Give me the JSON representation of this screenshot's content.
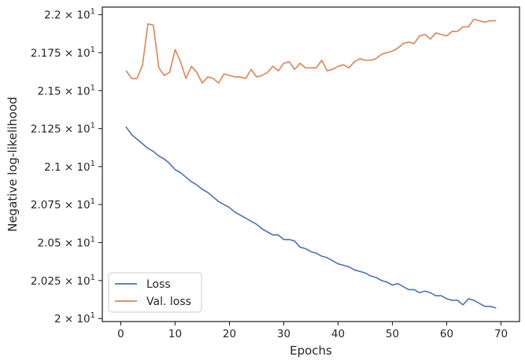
{
  "chart_data": {
    "type": "line",
    "xlabel": "Epochs",
    "ylabel": "Negative log-likelihood",
    "xlim": [
      -3.4,
      73.4
    ],
    "ylim": [
      19.98,
      22.05
    ],
    "x_ticks": [
      0,
      10,
      20,
      30,
      40,
      50,
      60,
      70
    ],
    "x_tick_labels": [
      "0",
      "10",
      "20",
      "30",
      "40",
      "50",
      "60",
      "70"
    ],
    "y_ticks": [
      20.0,
      20.25,
      20.5,
      20.75,
      21.0,
      21.25,
      21.5,
      21.75,
      22.0
    ],
    "y_tick_labels": [
      {
        "mantissa": "2",
        "exp": "1"
      },
      {
        "mantissa": "2.025",
        "exp": "1"
      },
      {
        "mantissa": "2.05",
        "exp": "1"
      },
      {
        "mantissa": "2.075",
        "exp": "1"
      },
      {
        "mantissa": "2.1",
        "exp": "1"
      },
      {
        "mantissa": "2.125",
        "exp": "1"
      },
      {
        "mantissa": "2.15",
        "exp": "1"
      },
      {
        "mantissa": "2.175",
        "exp": "1"
      },
      {
        "mantissa": "2.2",
        "exp": "1"
      }
    ],
    "times_sign": "× 10",
    "legend_position": "lower-left",
    "grid": false,
    "series": [
      {
        "name": "Loss",
        "color": "#4c72b0",
        "x": [
          1,
          2,
          3,
          4,
          5,
          6,
          7,
          8,
          9,
          10,
          11,
          12,
          13,
          14,
          15,
          16,
          17,
          18,
          19,
          20,
          21,
          22,
          23,
          24,
          25,
          26,
          27,
          28,
          29,
          30,
          31,
          32,
          33,
          34,
          35,
          36,
          37,
          38,
          39,
          40,
          41,
          42,
          43,
          44,
          45,
          46,
          47,
          48,
          49,
          50,
          51,
          52,
          53,
          54,
          55,
          56,
          57,
          58,
          59,
          60,
          61,
          62,
          63,
          64,
          65,
          66,
          67,
          68,
          69
        ],
        "values": [
          21.26,
          21.21,
          21.18,
          21.15,
          21.12,
          21.1,
          21.07,
          21.05,
          21.02,
          20.98,
          20.96,
          20.93,
          20.9,
          20.88,
          20.85,
          20.83,
          20.8,
          20.77,
          20.75,
          20.73,
          20.7,
          20.68,
          20.66,
          20.64,
          20.62,
          20.59,
          20.57,
          20.55,
          20.55,
          20.52,
          20.52,
          20.51,
          20.47,
          20.46,
          20.44,
          20.43,
          20.41,
          20.4,
          20.38,
          20.36,
          20.35,
          20.34,
          20.32,
          20.31,
          20.3,
          20.28,
          20.27,
          20.25,
          20.24,
          20.22,
          20.23,
          20.21,
          20.19,
          20.19,
          20.17,
          20.18,
          20.17,
          20.15,
          20.15,
          20.13,
          20.12,
          20.12,
          20.09,
          20.13,
          20.12,
          20.1,
          20.08,
          20.08,
          20.07
        ]
      },
      {
        "name": "Val. loss",
        "color": "#dd8452",
        "x": [
          1,
          2,
          3,
          4,
          5,
          6,
          7,
          8,
          9,
          10,
          11,
          12,
          13,
          14,
          15,
          16,
          17,
          18,
          19,
          20,
          21,
          22,
          23,
          24,
          25,
          26,
          27,
          28,
          29,
          30,
          31,
          32,
          33,
          34,
          35,
          36,
          37,
          38,
          39,
          40,
          41,
          42,
          43,
          44,
          45,
          46,
          47,
          48,
          49,
          50,
          51,
          52,
          53,
          54,
          55,
          56,
          57,
          58,
          59,
          60,
          61,
          62,
          63,
          64,
          65,
          66,
          67,
          68,
          69
        ],
        "values": [
          21.63,
          21.58,
          21.58,
          21.67,
          21.94,
          21.93,
          21.65,
          21.6,
          21.62,
          21.77,
          21.69,
          21.58,
          21.66,
          21.62,
          21.55,
          21.59,
          21.58,
          21.55,
          21.61,
          21.6,
          21.59,
          21.59,
          21.58,
          21.64,
          21.59,
          21.6,
          21.62,
          21.66,
          21.63,
          21.68,
          21.69,
          21.64,
          21.68,
          21.65,
          21.65,
          21.65,
          21.7,
          21.63,
          21.64,
          21.66,
          21.67,
          21.65,
          21.69,
          21.71,
          21.7,
          21.7,
          21.71,
          21.74,
          21.75,
          21.76,
          21.78,
          21.81,
          21.82,
          21.81,
          21.86,
          21.87,
          21.84,
          21.88,
          21.87,
          21.86,
          21.89,
          21.89,
          21.92,
          21.92,
          21.97,
          21.96,
          21.95,
          21.96,
          21.96
        ]
      }
    ]
  }
}
